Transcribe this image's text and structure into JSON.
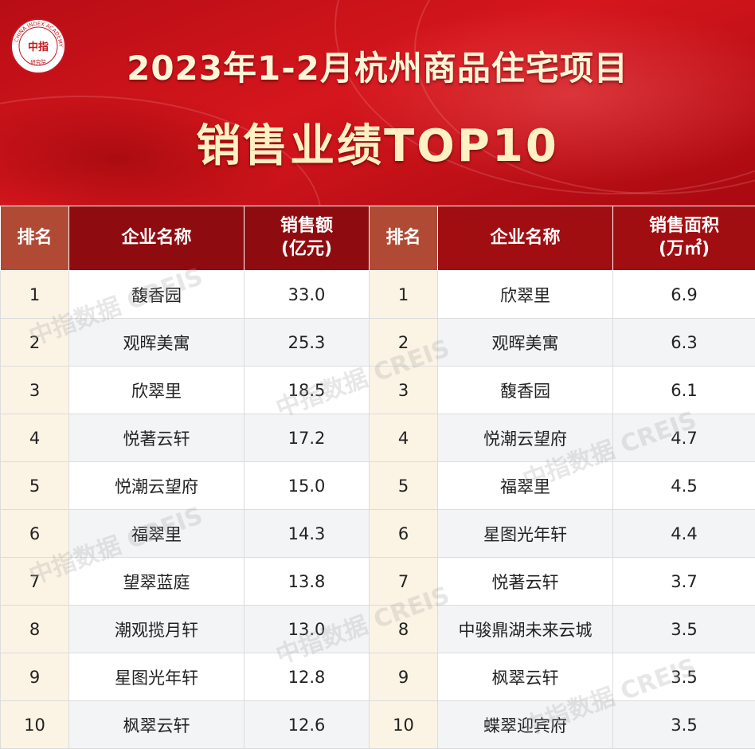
{
  "banner": {
    "title_line1": "2023年1-2月杭州商品住宅项目",
    "title_line2": "销售业绩TOP10",
    "logo": {
      "center_text": "中指",
      "ring_text": "CHINA INDEX ACADEMY",
      "bottom_text": "研究院"
    }
  },
  "table": {
    "headers": {
      "left_rank": "排名",
      "left_name": "企业名称",
      "left_value_line1": "销售额",
      "left_value_line2": "(亿元)",
      "right_rank": "排名",
      "right_name": "企业名称",
      "right_value_line1": "销售面积",
      "right_value_line2": "(万㎡)"
    },
    "rows": [
      {
        "l_rank": "1",
        "l_name": "馥香园",
        "l_val": "33.0",
        "r_rank": "1",
        "r_name": "欣翠里",
        "r_val": "6.9"
      },
      {
        "l_rank": "2",
        "l_name": "观晖美寓",
        "l_val": "25.3",
        "r_rank": "2",
        "r_name": "观晖美寓",
        "r_val": "6.3"
      },
      {
        "l_rank": "3",
        "l_name": "欣翠里",
        "l_val": "18.5",
        "r_rank": "3",
        "r_name": "馥香园",
        "r_val": "6.1"
      },
      {
        "l_rank": "4",
        "l_name": "悦著云轩",
        "l_val": "17.2",
        "r_rank": "4",
        "r_name": "悦潮云望府",
        "r_val": "4.7"
      },
      {
        "l_rank": "5",
        "l_name": "悦潮云望府",
        "l_val": "15.0",
        "r_rank": "5",
        "r_name": "福翠里",
        "r_val": "4.5"
      },
      {
        "l_rank": "6",
        "l_name": "福翠里",
        "l_val": "14.3",
        "r_rank": "6",
        "r_name": "星图光年轩",
        "r_val": "4.4"
      },
      {
        "l_rank": "7",
        "l_name": "望翠蓝庭",
        "l_val": "13.8",
        "r_rank": "7",
        "r_name": "悦著云轩",
        "r_val": "3.7"
      },
      {
        "l_rank": "8",
        "l_name": "潮观揽月轩",
        "l_val": "13.0",
        "r_rank": "8",
        "r_name": "中骏鼎湖未来云城",
        "r_val": "3.5"
      },
      {
        "l_rank": "9",
        "l_name": "星图光年轩",
        "l_val": "12.8",
        "r_rank": "9",
        "r_name": "枫翠云轩",
        "r_val": "3.5"
      },
      {
        "l_rank": "10",
        "l_name": "枫翠云轩",
        "l_val": "12.6",
        "r_rank": "10",
        "r_name": "蝶翠迎宾府",
        "r_val": "3.5"
      }
    ]
  },
  "watermark": "中指数据 CREIS",
  "colors": {
    "banner_red": "#d5161d",
    "header_dark_red": "#8e0c10",
    "header_brown": "#b04a35",
    "rank_text": "#b01418",
    "title_gold": "#fff1c4"
  }
}
